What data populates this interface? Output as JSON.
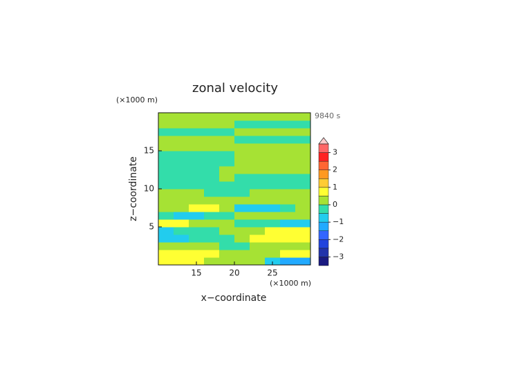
{
  "chart_data": {
    "type": "contour",
    "title": "zonal velocity",
    "xlabel": "x−coordinate",
    "ylabel": "z−coordinate",
    "x_unit": "(×1000 m)",
    "y_unit": "(×1000 m)",
    "time_label": "9840 s",
    "xlim": [
      10,
      30
    ],
    "ylim": [
      0,
      20
    ],
    "xticks": [
      15,
      20,
      25
    ],
    "yticks": [
      5,
      10,
      15
    ],
    "x": [
      11,
      13,
      15,
      17,
      19,
      21,
      23,
      25,
      27,
      29
    ],
    "y": [
      0.5,
      1.5,
      2.5,
      3.5,
      4.5,
      5.5,
      6.5,
      7.5,
      8.5,
      9.5,
      10.5,
      11.5,
      12.5,
      13.5,
      14.5,
      15.5,
      16.5,
      17.5,
      18.5,
      19.5
    ],
    "z": [
      [
        0.6,
        0.8,
        0.6,
        0.3,
        0.1,
        0.1,
        0.2,
        -0.6,
        -1.2,
        -1.4
      ],
      [
        0.7,
        0.9,
        0.8,
        0.5,
        0.2,
        0.2,
        0.3,
        0.4,
        0.6,
        0.6
      ],
      [
        0.2,
        0.3,
        0.1,
        0.1,
        -0.2,
        -0.2,
        0.1,
        0.2,
        0.2,
        0.1
      ],
      [
        -0.8,
        -0.7,
        -0.4,
        -0.2,
        -0.1,
        0.2,
        0.5,
        0.7,
        0.9,
        0.9
      ],
      [
        -0.6,
        -0.5,
        -0.3,
        -0.1,
        0.1,
        0.3,
        0.4,
        0.5,
        0.6,
        0.6
      ],
      [
        0.5,
        0.6,
        0.4,
        0.2,
        0.1,
        -0.2,
        -0.3,
        -0.4,
        -0.7,
        -0.8
      ],
      [
        -0.2,
        -0.6,
        -0.7,
        -0.4,
        -0.2,
        0.2,
        0.3,
        0.2,
        0.1,
        0.1
      ],
      [
        0.3,
        0.4,
        0.7,
        0.8,
        0.3,
        -0.8,
        -0.9,
        -0.6,
        -0.3,
        0.2
      ],
      [
        0.2,
        0.2,
        0.1,
        0.1,
        0.2,
        0.2,
        0.1,
        0.1,
        0.2,
        0.2
      ],
      [
        0.2,
        0.1,
        0.1,
        -0.1,
        -0.2,
        -0.1,
        0.1,
        0.1,
        0.2,
        0.2
      ],
      [
        -0.1,
        -0.2,
        -0.2,
        -0.1,
        -0.2,
        -0.2,
        -0.1,
        -0.2,
        -0.2,
        -0.1
      ],
      [
        -0.1,
        -0.1,
        -0.1,
        -0.1,
        0.1,
        -0.2,
        -0.1,
        -0.1,
        -0.1,
        -0.1
      ],
      [
        -0.2,
        -0.2,
        -0.2,
        -0.1,
        0.1,
        0.1,
        0.1,
        0.1,
        0.1,
        0.1
      ],
      [
        -0.2,
        -0.2,
        -0.2,
        -0.2,
        -0.1,
        0.1,
        0.1,
        0.2,
        0.2,
        0.2
      ],
      [
        -0.1,
        -0.2,
        -0.2,
        -0.1,
        -0.1,
        0.1,
        0.1,
        0.1,
        0.1,
        0.1
      ],
      [
        0.1,
        0.1,
        0.1,
        0.1,
        0.1,
        0.1,
        0.2,
        0.2,
        0.1,
        0.1
      ],
      [
        0.2,
        0.2,
        0.2,
        0.2,
        0.2,
        -0.1,
        -0.1,
        -0.1,
        -0.1,
        -0.1
      ],
      [
        -0.2,
        -0.2,
        -0.2,
        -0.2,
        -0.1,
        0.2,
        0.2,
        0.2,
        0.1,
        0.1
      ],
      [
        0.1,
        0.1,
        0.1,
        0.1,
        0.1,
        -0.1,
        -0.1,
        -0.1,
        -0.1,
        -0.1
      ],
      [
        0.2,
        0.2,
        0.2,
        0.2,
        0.2,
        0.2,
        0.2,
        0.2,
        0.2,
        0.2
      ]
    ],
    "colorbar": {
      "levels": [
        -3.5,
        -3,
        -2.5,
        -2,
        -1.5,
        -1,
        -0.5,
        0,
        0.5,
        1,
        1.5,
        2,
        2.5,
        3,
        3.5
      ],
      "colors": [
        "#1a1a80",
        "#2233aa",
        "#2244dd",
        "#3366ff",
        "#22aaff",
        "#22ccee",
        "#33ddaa",
        "#a6e234",
        "#ffff33",
        "#ffcc33",
        "#ff9922",
        "#ff6633",
        "#ff2222",
        "#ff6666",
        "#ffaaaa"
      ],
      "extend_color": "#ffcccc",
      "ticks": [
        {
          "value": -3,
          "label": "−3"
        },
        {
          "value": -2,
          "label": "−2"
        },
        {
          "value": -1,
          "label": "−1"
        },
        0,
        1,
        2,
        3
      ]
    }
  }
}
